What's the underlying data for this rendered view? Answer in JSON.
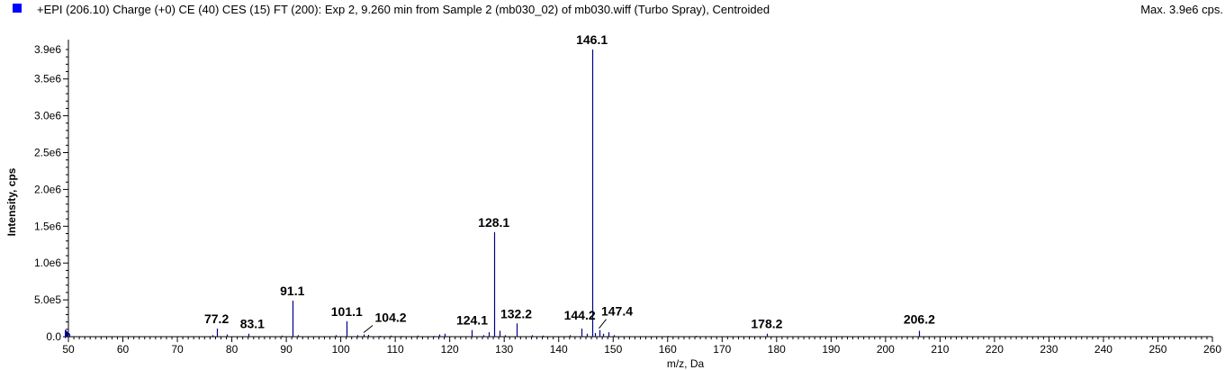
{
  "header": {
    "title": "+EPI (206.10) Charge (+0) CE (40) CES (15) FT (200): Exp 2, 9.260 min from Sample 2 (mb030_02) of mb030.wiff (Turbo Spray), Centroided",
    "max_label": "Max. 3.9e6 cps."
  },
  "colors": {
    "series": "#00008b",
    "swatch": "#0000ff"
  },
  "chart_data": {
    "type": "bar",
    "xlabel": "m/z, Da",
    "ylabel": "Intensity, cps",
    "xlim": [
      50,
      260
    ],
    "ylim": [
      0,
      3900000
    ],
    "x_ticks": [
      50,
      60,
      70,
      80,
      90,
      100,
      110,
      120,
      130,
      140,
      150,
      160,
      170,
      180,
      190,
      200,
      210,
      220,
      230,
      240,
      250,
      260
    ],
    "y_ticks": [
      {
        "value": 0,
        "label": "0.0"
      },
      {
        "value": 500000,
        "label": "5.0e5"
      },
      {
        "value": 1000000,
        "label": "1.0e6"
      },
      {
        "value": 1500000,
        "label": "1.5e6"
      },
      {
        "value": 2000000,
        "label": "2.0e6"
      },
      {
        "value": 2500000,
        "label": "2.5e6"
      },
      {
        "value": 3000000,
        "label": "3.0e6"
      },
      {
        "value": 3500000,
        "label": "3.5e6"
      },
      {
        "value": 3900000,
        "label": "3.9e6"
      }
    ],
    "peaks": [
      {
        "x": 50.1,
        "y": 30000
      },
      {
        "x": 76.5,
        "y": 20000
      },
      {
        "x": 77.2,
        "y": 110000
      },
      {
        "x": 79.1,
        "y": 30000
      },
      {
        "x": 83.1,
        "y": 40000
      },
      {
        "x": 89.1,
        "y": 15000
      },
      {
        "x": 91.1,
        "y": 490000
      },
      {
        "x": 92.1,
        "y": 20000
      },
      {
        "x": 99.1,
        "y": 20000
      },
      {
        "x": 101.1,
        "y": 210000
      },
      {
        "x": 103.1,
        "y": 20000
      },
      {
        "x": 104.2,
        "y": 30000
      },
      {
        "x": 105.1,
        "y": 25000
      },
      {
        "x": 107.1,
        "y": 12000
      },
      {
        "x": 109.1,
        "y": 15000
      },
      {
        "x": 111.1,
        "y": 10000
      },
      {
        "x": 114.1,
        "y": 15000
      },
      {
        "x": 117.1,
        "y": 10000
      },
      {
        "x": 118.1,
        "y": 30000
      },
      {
        "x": 119.1,
        "y": 40000
      },
      {
        "x": 124.1,
        "y": 90000
      },
      {
        "x": 126.1,
        "y": 20000
      },
      {
        "x": 127.1,
        "y": 60000
      },
      {
        "x": 128.1,
        "y": 1420000
      },
      {
        "x": 129.1,
        "y": 80000
      },
      {
        "x": 130.1,
        "y": 20000
      },
      {
        "x": 132.2,
        "y": 180000
      },
      {
        "x": 135.1,
        "y": 20000
      },
      {
        "x": 137.1,
        "y": 15000
      },
      {
        "x": 142.1,
        "y": 20000
      },
      {
        "x": 144.2,
        "y": 110000
      },
      {
        "x": 145.1,
        "y": 40000
      },
      {
        "x": 146.1,
        "y": 3900000
      },
      {
        "x": 146.7,
        "y": 50000
      },
      {
        "x": 147.4,
        "y": 90000
      },
      {
        "x": 148.1,
        "y": 40000
      },
      {
        "x": 149.1,
        "y": 60000
      },
      {
        "x": 150.1,
        "y": 20000
      },
      {
        "x": 160.1,
        "y": 10000
      },
      {
        "x": 165.1,
        "y": 12000
      },
      {
        "x": 175.1,
        "y": 8000
      },
      {
        "x": 178.2,
        "y": 40000
      },
      {
        "x": 188.1,
        "y": 8000
      },
      {
        "x": 206.2,
        "y": 80000
      }
    ],
    "annotations": [
      {
        "label": "77.2",
        "x": 77.2,
        "y": 110000
      },
      {
        "label": "83.1",
        "x": 83.1,
        "y": 40000
      },
      {
        "label": "91.1",
        "x": 91.1,
        "y": 490000
      },
      {
        "label": "101.1",
        "x": 101.1,
        "y": 210000
      },
      {
        "label": "104.2",
        "x": 104.2,
        "y": 30000
      },
      {
        "label": "124.1",
        "x": 124.1,
        "y": 90000
      },
      {
        "label": "128.1",
        "x": 128.1,
        "y": 1420000
      },
      {
        "label": "132.2",
        "x": 132.2,
        "y": 180000
      },
      {
        "label": "144.2",
        "x": 144.2,
        "y": 110000
      },
      {
        "label": "146.1",
        "x": 146.1,
        "y": 3900000
      },
      {
        "label": "147.4",
        "x": 147.4,
        "y": 90000
      },
      {
        "label": "178.2",
        "x": 178.2,
        "y": 40000
      },
      {
        "label": "206.2",
        "x": 206.2,
        "y": 80000
      }
    ]
  }
}
